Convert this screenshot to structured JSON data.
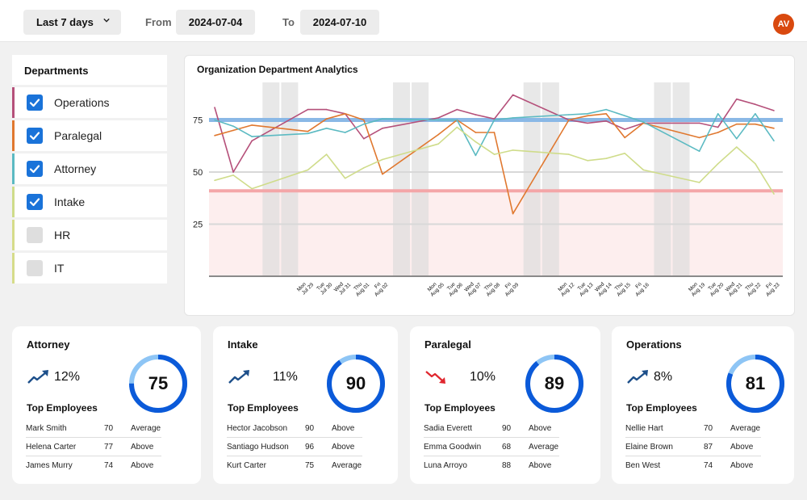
{
  "topbar": {
    "range_label": "Last 7 days",
    "from_label": "From",
    "from_date": "2024-07-04",
    "to_label": "To",
    "to_date": "2024-07-10",
    "avatar_initials": "AV",
    "avatar_color": "#d9490f"
  },
  "departments": {
    "header": "Departments",
    "items": [
      {
        "label": "Operations",
        "checked": true,
        "color": "#b5507a"
      },
      {
        "label": "Paralegal",
        "checked": true,
        "color": "#e0782f"
      },
      {
        "label": "Attorney",
        "checked": true,
        "color": "#5bbac2"
      },
      {
        "label": "Intake",
        "checked": true,
        "color": "#cfdc8a"
      },
      {
        "label": "HR",
        "checked": false,
        "color": "#d6dc8a"
      },
      {
        "label": "IT",
        "checked": false,
        "color": "#d6dc8a"
      }
    ]
  },
  "chart_data": {
    "type": "line",
    "title": "Organization Department Analytics",
    "xlabel": "",
    "ylabel": "",
    "ylim": [
      0,
      100
    ],
    "yticks": [
      25,
      50,
      75
    ],
    "target_line": 75,
    "threshold_line": 41,
    "weekend_day_indices": [
      3,
      4,
      10,
      11,
      17,
      18,
      24,
      25
    ],
    "day_count": 31,
    "x_labels": [
      {
        "day": 5,
        "line1": "Mon",
        "line2": "Jul 29"
      },
      {
        "day": 6,
        "line1": "Tue",
        "line2": "Jul 30"
      },
      {
        "day": 7,
        "line1": "Wed",
        "line2": "Jul 31"
      },
      {
        "day": 8,
        "line1": "Thu",
        "line2": "Aug 01"
      },
      {
        "day": 9,
        "line1": "Fri",
        "line2": "Aug 02"
      },
      {
        "day": 12,
        "line1": "Mon",
        "line2": "Aug 05"
      },
      {
        "day": 13,
        "line1": "Tue",
        "line2": "Aug 06"
      },
      {
        "day": 14,
        "line1": "Wed",
        "line2": "Aug 07"
      },
      {
        "day": 15,
        "line1": "Thu",
        "line2": "Aug 08"
      },
      {
        "day": 16,
        "line1": "Fri",
        "line2": "Aug 09"
      },
      {
        "day": 19,
        "line1": "Mon",
        "line2": "Aug 12"
      },
      {
        "day": 20,
        "line1": "Tue",
        "line2": "Aug 13"
      },
      {
        "day": 21,
        "line1": "Wed",
        "line2": "Aug 14"
      },
      {
        "day": 22,
        "line1": "Thu",
        "line2": "Aug 15"
      },
      {
        "day": 23,
        "line1": "Fri",
        "line2": "Aug 16"
      },
      {
        "day": 26,
        "line1": "Mon",
        "line2": "Aug 19"
      },
      {
        "day": 27,
        "line1": "Tue",
        "line2": "Aug 20"
      },
      {
        "day": 28,
        "line1": "Wed",
        "line2": "Aug 21"
      },
      {
        "day": 29,
        "line1": "Thu",
        "line2": "Aug 22"
      },
      {
        "day": 30,
        "line1": "Fri",
        "line2": "Aug 23"
      }
    ],
    "x_days": [
      0,
      1,
      2,
      5,
      6,
      7,
      8,
      9,
      12,
      13,
      14,
      15,
      16,
      19,
      20,
      21,
      22,
      23,
      26,
      27,
      28,
      29,
      30
    ],
    "series": [
      {
        "name": "Operations",
        "color": "#b5507a",
        "values": [
          81,
          50,
          65,
          80,
          80,
          78,
          66,
          71,
          76,
          80,
          77.5,
          75.5,
          87,
          75,
          73.5,
          74.5,
          70.5,
          73.5,
          73.5,
          71.5,
          85,
          82.5,
          79.5
        ]
      },
      {
        "name": "Paralegal",
        "color": "#e0782f",
        "values": [
          67.5,
          70,
          72.5,
          69.5,
          75.5,
          78,
          75,
          49,
          68,
          75,
          69,
          69,
          30,
          75,
          77,
          78,
          66.5,
          73.5,
          66.5,
          69,
          73,
          73,
          71
        ]
      },
      {
        "name": "Attorney",
        "color": "#5bbac2",
        "values": [
          75,
          72,
          67,
          68.5,
          71,
          69,
          73,
          75.5,
          75,
          75,
          58,
          75,
          76,
          77.5,
          78,
          80,
          77,
          74,
          60,
          78,
          66,
          78,
          65
        ]
      },
      {
        "name": "Intake",
        "color": "#cfdc8a",
        "values": [
          46,
          48.5,
          42,
          51,
          58.5,
          47,
          52,
          56,
          63.5,
          71.5,
          64.5,
          58.5,
          60.5,
          58.5,
          55.5,
          56.5,
          59,
          51,
          45,
          54,
          62,
          54,
          39.5
        ]
      }
    ]
  },
  "cards": [
    {
      "title": "Attorney",
      "trend": "up",
      "trend_value": "12%",
      "score": 75,
      "top_employees_label": "Top Employees",
      "employees": [
        {
          "name": "Mark Smith",
          "score": "70",
          "status": "Average"
        },
        {
          "name": "Helena Carter",
          "score": "77",
          "status": "Above"
        },
        {
          "name": "James Murry",
          "score": "74",
          "status": "Above"
        }
      ]
    },
    {
      "title": "Intake",
      "trend": "up",
      "trend_value": "11%",
      "score": 90,
      "top_employees_label": "Top Employees",
      "employees": [
        {
          "name": "Hector Jacobson",
          "score": "90",
          "status": "Above"
        },
        {
          "name": "Santiago Hudson",
          "score": "96",
          "status": "Above"
        },
        {
          "name": "Kurt Carter",
          "score": "75",
          "status": "Average"
        }
      ]
    },
    {
      "title": "Paralegal",
      "trend": "down",
      "trend_value": "10%",
      "score": 89,
      "top_employees_label": "Top Employees",
      "employees": [
        {
          "name": "Sadia Everett",
          "score": "90",
          "status": "Above"
        },
        {
          "name": "Emma Goodwin",
          "score": "68",
          "status": "Average"
        },
        {
          "name": "Luna Arroyo",
          "score": "88",
          "status": "Above"
        }
      ]
    },
    {
      "title": "Operations",
      "trend": "up",
      "trend_value": "8%",
      "score": 81,
      "top_employees_label": "Top Employees",
      "employees": [
        {
          "name": "Nellie Hart",
          "score": "70",
          "status": "Average"
        },
        {
          "name": "Elaine Brown",
          "score": "87",
          "status": "Above"
        },
        {
          "name": "Ben West",
          "score": "74",
          "status": "Above"
        }
      ]
    }
  ],
  "colors": {
    "trend_up": "#1d4f8a",
    "trend_down": "#e0262e",
    "donut_fill": "#0b5ad9",
    "donut_track": "#8ec5f5",
    "checkbox_on": "#1a73d9",
    "target_line": "#8ab8e6",
    "threshold_line": "#f4a6a8",
    "threshold_zone": "#fdeeee",
    "weekend_band": "#dcdcdc"
  }
}
